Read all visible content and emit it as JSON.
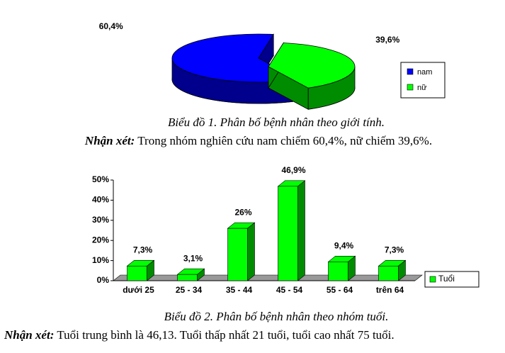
{
  "chart_data": [
    {
      "type": "pie",
      "title": "Biểu đồ 1. Phân bố bệnh nhân theo giới tính.",
      "categories": [
        "nam",
        "nữ"
      ],
      "values": [
        60.4,
        39.6
      ],
      "value_labels": [
        "60,4%",
        "39,6%"
      ],
      "colors": [
        "#0000ff",
        "#00ff00"
      ],
      "legend": "right"
    },
    {
      "type": "bar",
      "title": "Biểu đồ 2. Phân bố bệnh nhân theo nhóm tuổi.",
      "categories": [
        "dưới 25",
        "25 - 34",
        "35 - 44",
        "45 - 54",
        "55 - 64",
        "trên 64"
      ],
      "series": [
        {
          "name": "Tuổi",
          "color": "#00ff00",
          "values": [
            7.3,
            3.1,
            26,
            46.9,
            9.4,
            7.3
          ],
          "value_labels": [
            "7,3%",
            "3,1%",
            "26%",
            "46,9%",
            "9,4%",
            "7,3%"
          ]
        }
      ],
      "ylim": [
        0,
        50
      ],
      "yticks": [
        {
          "value": 0,
          "label": "0%"
        },
        {
          "value": 10,
          "label": "10%"
        },
        {
          "value": 20,
          "label": "20%"
        },
        {
          "value": 30,
          "label": "30%"
        },
        {
          "value": 40,
          "label": "40%"
        },
        {
          "value": 50,
          "label": "50%"
        }
      ],
      "legend": "right"
    }
  ],
  "notes": [
    {
      "label": "Nhận xét:",
      "text": " Trong nhóm nghiên cứu nam chiếm 60,4%, nữ chiếm 39,6%."
    },
    {
      "label": "Nhận xét:",
      "text": " Tuổi trung bình là 46,13. Tuổi thấp nhất 21 tuổi, tuổi cao nhất 75 tuổi."
    }
  ]
}
